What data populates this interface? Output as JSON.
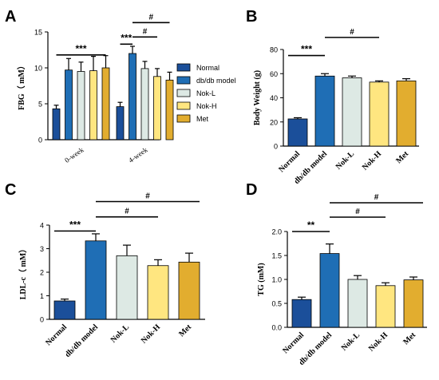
{
  "colors": {
    "Normal": "#1b4f9a",
    "db/db model": "#1f6eb5",
    "Nok-L": "#dde9e4",
    "Nok-H": "#ffe680",
    "Met": "#e2ad2f",
    "outline": "#000000"
  },
  "chart_data": [
    {
      "panel": "A",
      "type": "bar",
      "ylabel": "FBG（ mM）",
      "ylim": [
        0,
        15
      ],
      "yticks": [
        0,
        5,
        10,
        15
      ],
      "groups": [
        "0-week",
        "4-week"
      ],
      "series": [
        {
          "name": "Normal",
          "values": [
            4.3,
            4.6
          ],
          "err": [
            0.5,
            0.6
          ]
        },
        {
          "name": "db/db model",
          "values": [
            9.7,
            12.0
          ],
          "err": [
            1.6,
            1.0
          ]
        },
        {
          "name": "Nok-L",
          "values": [
            9.5,
            9.9
          ],
          "err": [
            1.3,
            1.0
          ]
        },
        {
          "name": "Nok-H",
          "values": [
            9.6,
            8.8
          ],
          "err": [
            2.0,
            1.1
          ]
        },
        {
          "name": "Met",
          "values": [
            10.0,
            8.3
          ],
          "err": [
            1.7,
            1.1
          ]
        }
      ],
      "annotations": [
        {
          "label": "***",
          "group": 0,
          "from": 0,
          "to": 4,
          "y": 11.8
        },
        {
          "label": "***",
          "group": 1,
          "from": 0,
          "to": 1,
          "y": 13.3
        },
        {
          "label": "#",
          "group": 1,
          "from": 1,
          "to": 3,
          "y": 14.3
        },
        {
          "label": "#",
          "group": 1,
          "from": 1,
          "to": 4,
          "y": 16.3
        }
      ],
      "legend": "right"
    },
    {
      "panel": "B",
      "type": "bar",
      "ylabel": "Body Weight (g)",
      "ylim": [
        0,
        80
      ],
      "yticks": [
        0,
        20,
        40,
        60,
        80
      ],
      "categories": [
        "Normal",
        "db/db model",
        "Nok-L",
        "Nok-H",
        "Met"
      ],
      "values": [
        22.5,
        58.0,
        56.5,
        53.0,
        54.0
      ],
      "err": [
        1.0,
        2.0,
        1.5,
        1.0,
        1.8
      ],
      "annotations": [
        {
          "label": "***",
          "from": 0,
          "to": 1,
          "y": 75
        },
        {
          "label": "#",
          "from": 1,
          "to": 3,
          "y": 90
        }
      ]
    },
    {
      "panel": "C",
      "type": "bar",
      "ylabel": "LDL-c（ mM）",
      "ylim": [
        0,
        4
      ],
      "yticks": [
        0,
        1,
        2,
        3,
        4
      ],
      "categories": [
        "Normal",
        "db/db model",
        "Nok-L",
        "Nok-H",
        "Met"
      ],
      "values": [
        0.78,
        3.33,
        2.7,
        2.28,
        2.43
      ],
      "err": [
        0.08,
        0.3,
        0.45,
        0.25,
        0.38
      ],
      "annotations": [
        {
          "label": "***",
          "from": 0,
          "to": 1,
          "y": 3.75
        },
        {
          "label": "#",
          "from": 1,
          "to": 3,
          "y": 4.35
        },
        {
          "label": "#",
          "from": 1,
          "to": 4,
          "y": 5.0
        }
      ]
    },
    {
      "panel": "D",
      "type": "bar",
      "ylabel": "TG (mM)",
      "ylim": [
        0,
        2.0
      ],
      "yticks": [
        "0.0",
        "0.5",
        "1.0",
        "1.5",
        "2.0"
      ],
      "categories": [
        "Normal",
        "db/db model",
        "Nok-L",
        "Nok-H",
        "Met"
      ],
      "values": [
        0.58,
        1.54,
        1.0,
        0.87,
        0.99
      ],
      "err": [
        0.05,
        0.2,
        0.08,
        0.06,
        0.06
      ],
      "annotations": [
        {
          "label": "**",
          "from": 0,
          "to": 1,
          "y": 2.0
        },
        {
          "label": "#",
          "from": 1,
          "to": 3,
          "y": 2.3
        },
        {
          "label": "#",
          "from": 1,
          "to": 4,
          "y": 2.6
        }
      ]
    }
  ]
}
